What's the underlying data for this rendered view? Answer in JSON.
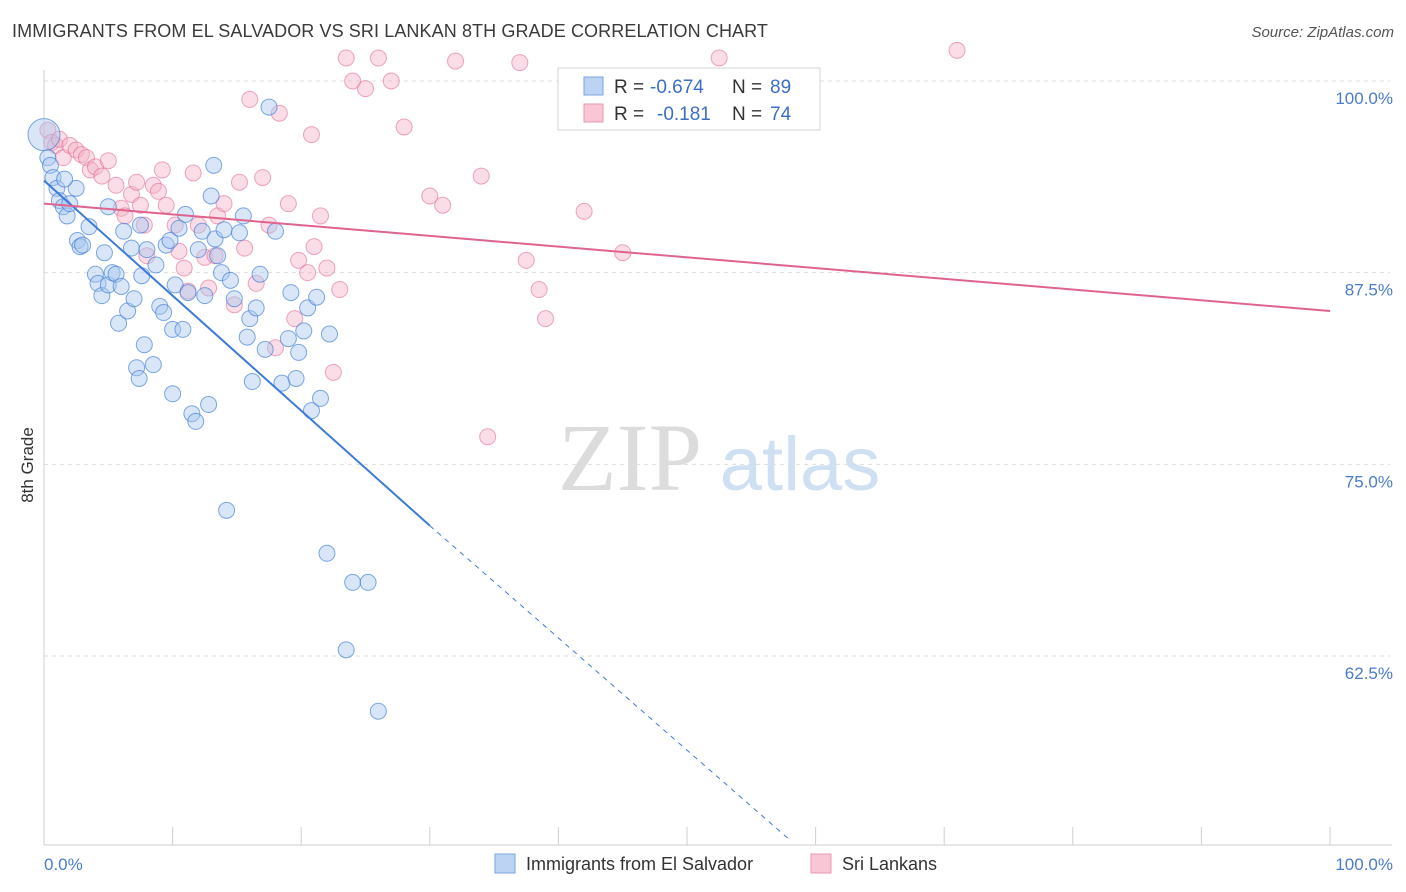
{
  "title": "IMMIGRANTS FROM EL SALVADOR VS SRI LANKAN 8TH GRADE CORRELATION CHART",
  "source": "Source: ZipAtlas.com",
  "watermark": {
    "zip": "ZIP",
    "atlas": "atlas"
  },
  "colors": {
    "blue": "#3d7bd6",
    "blue_fill": "#a9c7f0",
    "pink": "#e0638e",
    "pink_fill": "#f4b4c8",
    "tick_text": "#4a7cc9",
    "grid": "#dddddd"
  },
  "legend": {
    "rows": [
      {
        "r_label": "R =",
        "r_value": "-0.674",
        "n_label": "N =",
        "n_value": "89"
      },
      {
        "r_label": "R =",
        "r_value": "-0.181",
        "n_label": "N =",
        "n_value": "74"
      }
    ]
  },
  "bottom_legend": [
    "Immigrants from El Salvador",
    "Sri Lankans"
  ],
  "chart_data": {
    "type": "scatter",
    "title": "IMMIGRANTS FROM EL SALVADOR VS SRI LANKAN 8TH GRADE CORRELATION CHART",
    "xlabel": "",
    "ylabel": "8th Grade",
    "xlim": [
      0,
      100
    ],
    "ylim": [
      51,
      102
    ],
    "x_tick_labels": [
      "0.0%",
      "100.0%"
    ],
    "y_ticks": [
      62.5,
      75.0,
      87.5,
      100.0
    ],
    "y_tick_labels": [
      "62.5%",
      "75.0%",
      "87.5%",
      "100.0%"
    ],
    "grid": true,
    "legend_position": "top-center",
    "series": [
      {
        "name": "Immigrants from El Salvador",
        "r": -0.674,
        "n": 89,
        "trend": {
          "x0": 0,
          "y0": 93.5,
          "x1": 30,
          "y1": 71.0,
          "dash_to_x": 58,
          "dash_to_y": 50.5
        },
        "points": [
          [
            0,
            96.5
          ],
          [
            0.3,
            95
          ],
          [
            0.5,
            94.5
          ],
          [
            0.7,
            93.7
          ],
          [
            1,
            93
          ],
          [
            1.2,
            92.2
          ],
          [
            1.5,
            91.8
          ],
          [
            1.8,
            91.2
          ],
          [
            2,
            92
          ],
          [
            2.5,
            93
          ],
          [
            2.6,
            89.6
          ],
          [
            2.8,
            89.2
          ],
          [
            3,
            89.3
          ],
          [
            3.5,
            90.5
          ],
          [
            4,
            87.4
          ],
          [
            4.2,
            86.8
          ],
          [
            4.5,
            86
          ],
          [
            4.7,
            88.8
          ],
          [
            5,
            91.8
          ],
          [
            5,
            86.7
          ],
          [
            5.3,
            87.5
          ],
          [
            5.6,
            87.4
          ],
          [
            5.8,
            84.2
          ],
          [
            6,
            86.6
          ],
          [
            6.2,
            90.2
          ],
          [
            6.5,
            85
          ],
          [
            6.8,
            89.1
          ],
          [
            7,
            85.8
          ],
          [
            7.2,
            81.3
          ],
          [
            7.4,
            80.6
          ],
          [
            7.5,
            90.6
          ],
          [
            7.6,
            87.3
          ],
          [
            7.8,
            82.8
          ],
          [
            8,
            89.0
          ],
          [
            8.5,
            81.5
          ],
          [
            8.7,
            88
          ],
          [
            9,
            85.3
          ],
          [
            9.3,
            84.9
          ],
          [
            9.5,
            89.3
          ],
          [
            9.8,
            89.6
          ],
          [
            10,
            83.8
          ],
          [
            10,
            79.6
          ],
          [
            10.2,
            86.7
          ],
          [
            10.5,
            90.4
          ],
          [
            10.8,
            83.8
          ],
          [
            11,
            91.3
          ],
          [
            11.2,
            86.2
          ],
          [
            11.5,
            78.3
          ],
          [
            11.8,
            77.8
          ],
          [
            12,
            89
          ],
          [
            12.3,
            90.2
          ],
          [
            12.5,
            86
          ],
          [
            12.8,
            78.9
          ],
          [
            13,
            92.5
          ],
          [
            13.2,
            94.5
          ],
          [
            13.3,
            89.7
          ],
          [
            13.5,
            88.6
          ],
          [
            13.8,
            87.5
          ],
          [
            14,
            90.3
          ],
          [
            14.2,
            72
          ],
          [
            14.5,
            87
          ],
          [
            14.8,
            85.8
          ],
          [
            15.2,
            90.1
          ],
          [
            15.5,
            91.2
          ],
          [
            15.8,
            83.3
          ],
          [
            16,
            84.5
          ],
          [
            16.2,
            80.4
          ],
          [
            16.5,
            85.2
          ],
          [
            16.8,
            87.4
          ],
          [
            17.2,
            82.5
          ],
          [
            17.5,
            98.3
          ],
          [
            18,
            90.2
          ],
          [
            18.5,
            80.3
          ],
          [
            19,
            83.2
          ],
          [
            19.2,
            86.2
          ],
          [
            19.6,
            80.6
          ],
          [
            19.8,
            82.3
          ],
          [
            20.2,
            83.7
          ],
          [
            20.5,
            85.2
          ],
          [
            20.8,
            78.5
          ],
          [
            21.2,
            85.9
          ],
          [
            21.5,
            79.3
          ],
          [
            22,
            69.2
          ],
          [
            22.2,
            83.5
          ],
          [
            23.5,
            62.9
          ],
          [
            24,
            67.3
          ],
          [
            25.2,
            67.3
          ],
          [
            26,
            58.9
          ],
          [
            1.6,
            93.6
          ]
        ],
        "point_sizes": {
          "large_index": 0
        }
      },
      {
        "name": "Sri Lankans",
        "r": -0.181,
        "n": 74,
        "trend": {
          "x0": 0,
          "y0": 92.0,
          "x1": 100,
          "y1": 85.0
        },
        "points": [
          [
            0.3,
            96.8
          ],
          [
            0.6,
            96
          ],
          [
            0.9,
            95.8
          ],
          [
            1.2,
            96.2
          ],
          [
            1.5,
            95
          ],
          [
            2,
            95.8
          ],
          [
            2.5,
            95.5
          ],
          [
            2.9,
            95.2
          ],
          [
            3.3,
            95
          ],
          [
            3.6,
            94.2
          ],
          [
            4,
            94.4
          ],
          [
            4.5,
            93.8
          ],
          [
            5,
            94.8
          ],
          [
            5.6,
            93.2
          ],
          [
            6,
            91.7
          ],
          [
            6.3,
            91.2
          ],
          [
            6.8,
            92.6
          ],
          [
            7.2,
            93.4
          ],
          [
            7.5,
            91.9
          ],
          [
            7.8,
            90.6
          ],
          [
            8,
            88.6
          ],
          [
            8.5,
            93.2
          ],
          [
            8.9,
            92.8
          ],
          [
            9.2,
            94.2
          ],
          [
            9.5,
            91.9
          ],
          [
            10.2,
            90.6
          ],
          [
            10.5,
            88.9
          ],
          [
            10.9,
            87.8
          ],
          [
            11.2,
            86.3
          ],
          [
            11.6,
            94
          ],
          [
            12,
            90.6
          ],
          [
            12.5,
            88.5
          ],
          [
            12.8,
            86.5
          ],
          [
            13.3,
            88.6
          ],
          [
            13.5,
            91.2
          ],
          [
            14,
            92
          ],
          [
            14.8,
            85.4
          ],
          [
            15.2,
            93.4
          ],
          [
            15.6,
            89.1
          ],
          [
            16,
            98.8
          ],
          [
            16.5,
            86.8
          ],
          [
            17,
            93.7
          ],
          [
            17.5,
            90.6
          ],
          [
            18,
            82.6
          ],
          [
            18.3,
            97.9
          ],
          [
            19,
            92
          ],
          [
            19.5,
            84.5
          ],
          [
            19.8,
            88.3
          ],
          [
            20.5,
            87.5
          ],
          [
            20.8,
            96.5
          ],
          [
            21,
            89.2
          ],
          [
            21.5,
            91.2
          ],
          [
            22,
            87.8
          ],
          [
            22.5,
            81
          ],
          [
            23,
            86.4
          ],
          [
            23.5,
            101.5
          ],
          [
            24,
            100
          ],
          [
            25,
            99.5
          ],
          [
            26,
            101.5
          ],
          [
            27,
            100
          ],
          [
            28,
            97
          ],
          [
            30,
            92.5
          ],
          [
            31,
            91.9
          ],
          [
            32,
            101.3
          ],
          [
            34,
            93.8
          ],
          [
            34.5,
            76.8
          ],
          [
            37,
            101.2
          ],
          [
            37.5,
            88.3
          ],
          [
            38.5,
            86.4
          ],
          [
            39,
            84.5
          ],
          [
            42,
            91.5
          ],
          [
            45,
            88.8
          ],
          [
            52.5,
            101.5
          ],
          [
            71,
            102
          ]
        ]
      }
    ]
  }
}
